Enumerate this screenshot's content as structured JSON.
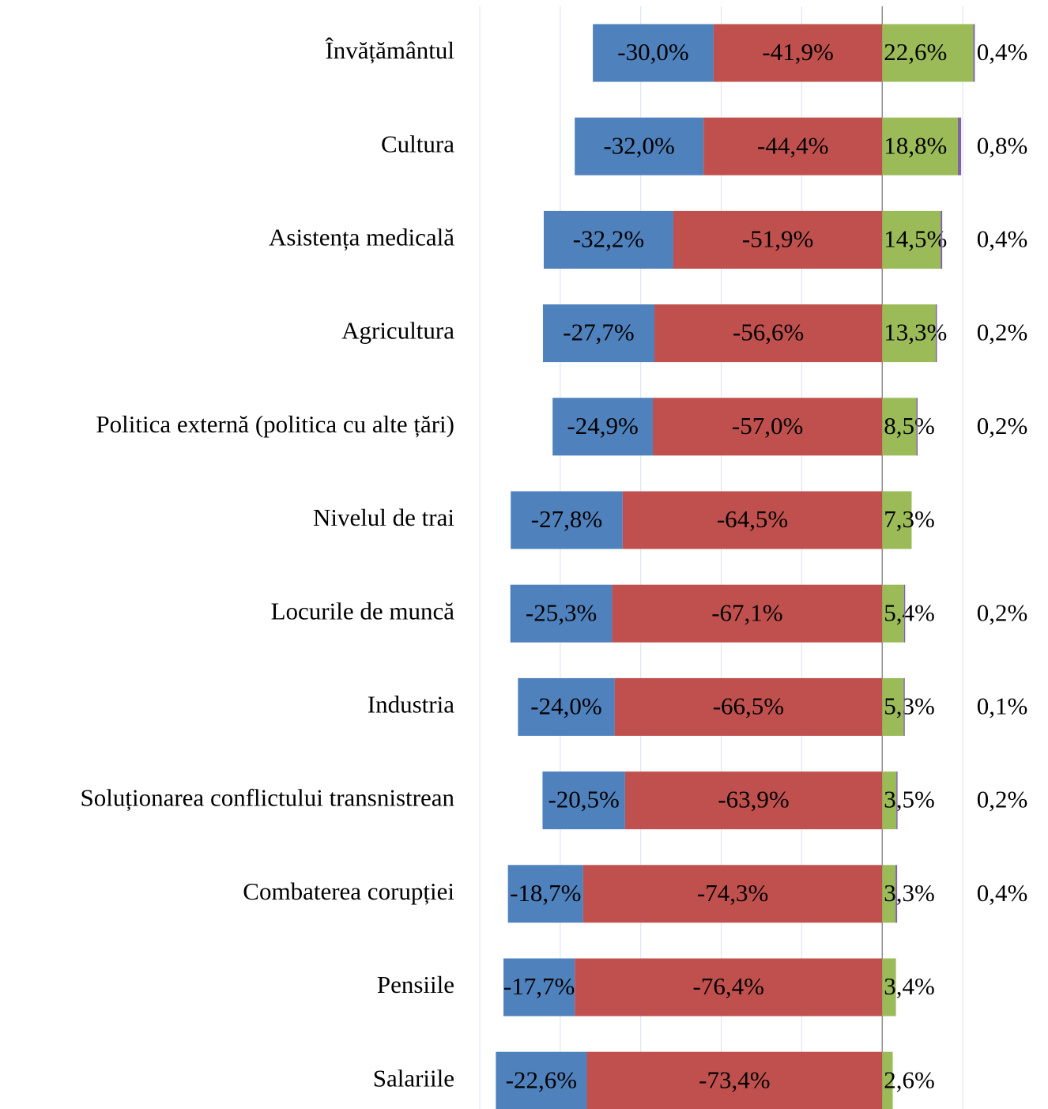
{
  "chart_data": {
    "type": "diverging-bar",
    "categories": [
      "Învățământul",
      "Cultura",
      "Asistența medicală",
      "Agricultura",
      "Politica externă (politica cu alte țări)",
      "Nivelul de trai",
      "Locurile de muncă",
      "Industria",
      "Soluționarea conflictului transnistrean",
      "Combaterea corupției",
      "Pensiile",
      "Salariile"
    ],
    "series": [
      {
        "color": "#c0504d",
        "values": [
          -41.9,
          -44.4,
          -51.9,
          -56.6,
          -57.0,
          -64.5,
          -67.1,
          -66.5,
          -63.9,
          -74.3,
          -76.4,
          -73.4
        ],
        "value_labels": [
          "-41,9%",
          "-44,4%",
          "-51,9%",
          "-56,6%",
          "-57,0%",
          "-64,5%",
          "-67,1%",
          "-66,5%",
          "-63,9%",
          "-74,3%",
          "-76,4%",
          "-73,4%"
        ]
      },
      {
        "color": "#4f81bd",
        "values": [
          -30.0,
          -32.0,
          -32.2,
          -27.7,
          -24.9,
          -27.8,
          -25.3,
          -24.0,
          -20.5,
          -18.7,
          -17.7,
          -22.6
        ],
        "value_labels": [
          "-30,0%",
          "-32,0%",
          "-32,2%",
          "-27,7%",
          "-24,9%",
          "-27,8%",
          "-25,3%",
          "-24,0%",
          "-20,5%",
          "-18,7%",
          "-17,7%",
          "-22,6%"
        ]
      },
      {
        "color": "#9bbb59",
        "values": [
          22.6,
          18.8,
          14.5,
          13.3,
          8.5,
          7.3,
          5.4,
          5.3,
          3.5,
          3.3,
          3.4,
          2.6
        ],
        "value_labels": [
          "22,6%",
          "18,8%",
          "14,5%",
          "13,3%",
          "8,5%",
          "7,3%",
          "5,4%",
          "5,3%",
          "3,5%",
          "3,3%",
          "3,4%",
          "2,6%"
        ]
      },
      {
        "color": "#8064a2",
        "values": [
          0.4,
          0.8,
          0.4,
          0.2,
          0.2,
          null,
          0.2,
          0.1,
          0.2,
          0.4,
          null,
          null
        ],
        "value_labels": [
          "0,4%",
          "0,8%",
          "0,4%",
          "0,2%",
          "0,2%",
          null,
          "0,2%",
          "0,1%",
          "0,2%",
          "0,4%",
          null,
          null
        ]
      }
    ],
    "xlim": [
      -100,
      40
    ],
    "xticks": [
      -100,
      -80,
      -60,
      -40,
      -20,
      0,
      20
    ],
    "grid": true
  }
}
